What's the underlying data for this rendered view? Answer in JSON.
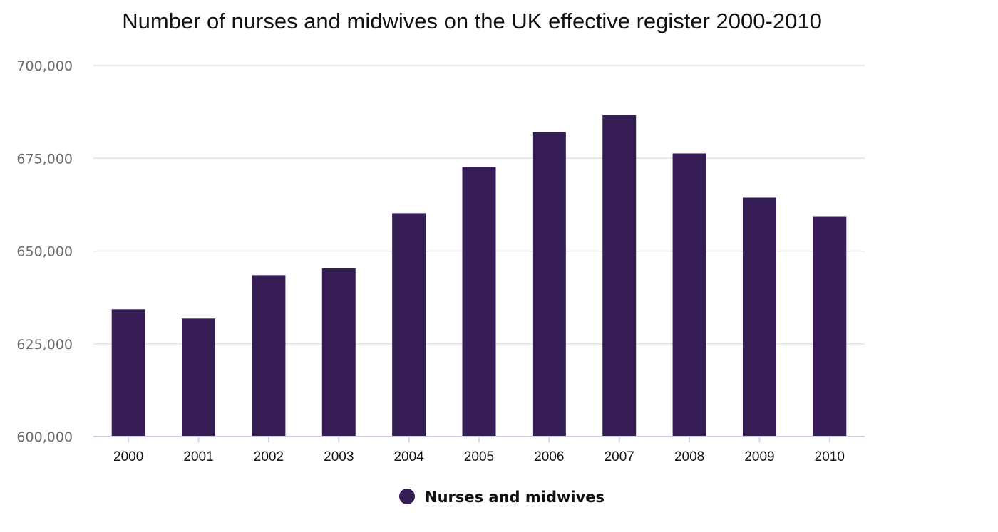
{
  "chart_data": {
    "type": "bar",
    "title": "Number of nurses and midwives on the UK effective register 2000-2010",
    "xlabel": "",
    "ylabel": "",
    "categories": [
      "2000",
      "2001",
      "2002",
      "2003",
      "2004",
      "2005",
      "2006",
      "2007",
      "2008",
      "2009",
      "2010"
    ],
    "series": [
      {
        "name": "Nurses and midwives",
        "color": "#371d56",
        "values": [
          634300,
          631800,
          643500,
          645300,
          660200,
          672700,
          682000,
          686600,
          676300,
          664400,
          659400
        ]
      }
    ],
    "ylim": [
      600000,
      700000
    ],
    "yticks": [
      600000,
      625000,
      650000,
      675000,
      700000
    ],
    "ytick_labels": [
      "600,000",
      "625,000",
      "650,000",
      "675,000",
      "700,000"
    ],
    "grid": true,
    "legend_position": "bottom-center"
  }
}
